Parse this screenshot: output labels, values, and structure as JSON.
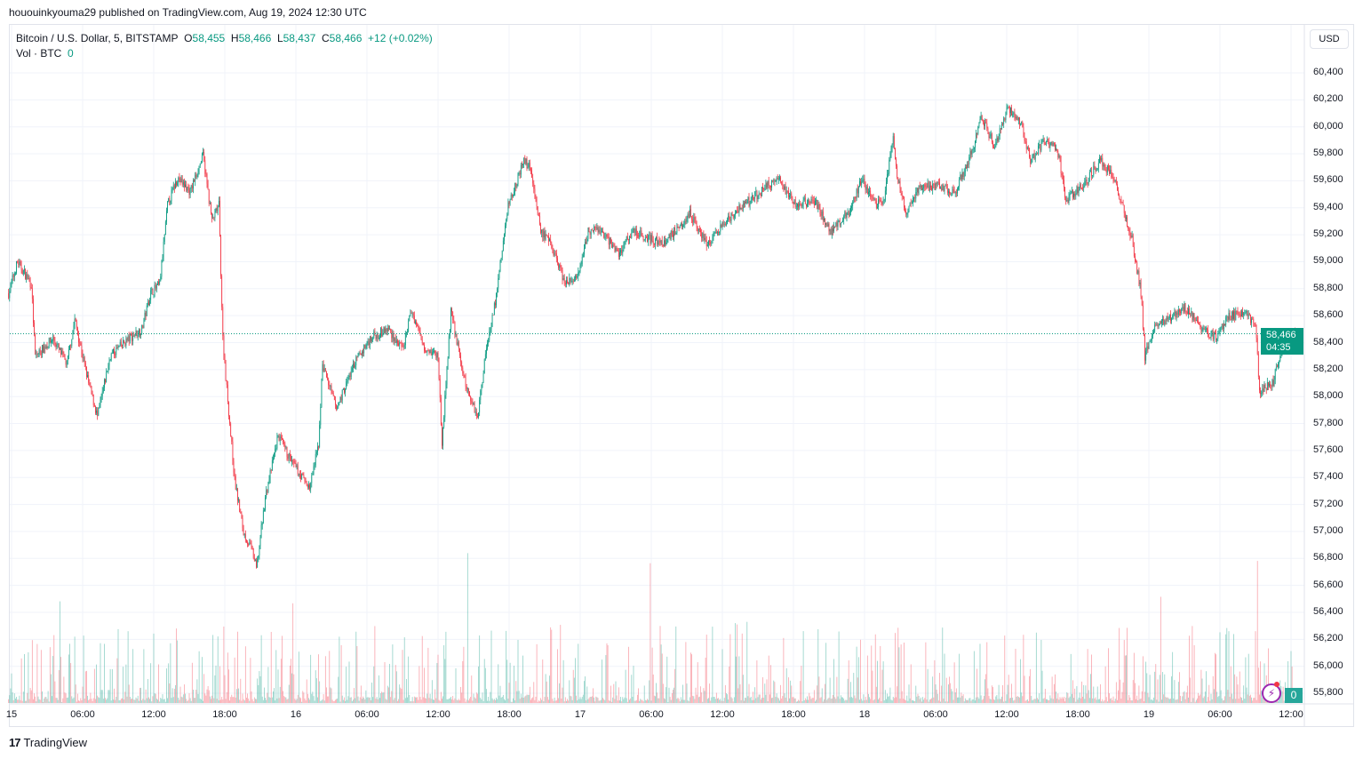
{
  "header": {
    "published": "hououinkyouma29 published on TradingView.com, Aug 19, 2024 12:30 UTC"
  },
  "legend": {
    "symbol": "Bitcoin / U.S. Dollar, 5, BITSTAMP",
    "o_label": "O",
    "o": "58,455",
    "h_label": "H",
    "h": "58,466",
    "l_label": "L",
    "l": "58,437",
    "c_label": "C",
    "c": "58,466",
    "change": "+12 (+0.02%)",
    "vol_label": "Vol · BTC",
    "vol": "0"
  },
  "currency_button": "USD",
  "last_price": {
    "price": "58,466",
    "countdown": "04:35"
  },
  "volume_label": "0",
  "footer": {
    "logo_text": "TradingView"
  },
  "colors": {
    "up": "#089981",
    "down": "#f23645",
    "grid": "#f0f3fa",
    "accent": "#9c27b0"
  },
  "icons": [
    "lightning-icon",
    "tradingview-logo-icon"
  ],
  "chart_data": {
    "type": "candlestick",
    "interval": "5m",
    "ylim": [
      55800,
      60400
    ],
    "price_ticks": [
      "60,400",
      "60,200",
      "60,000",
      "59,800",
      "59,600",
      "59,400",
      "59,200",
      "59,000",
      "58,800",
      "58,600",
      "58,400",
      "58,200",
      "58,000",
      "57,800",
      "57,600",
      "57,400",
      "57,200",
      "57,000",
      "56,800",
      "56,600",
      "56,400",
      "56,200",
      "56,000",
      "55,800"
    ],
    "time_ticks": [
      "15",
      "06:00",
      "12:00",
      "18:00",
      "16",
      "06:00",
      "12:00",
      "18:00",
      "17",
      "06:00",
      "12:00",
      "18:00",
      "18",
      "06:00",
      "12:00",
      "18:00",
      "19",
      "06:00",
      "12:00"
    ],
    "approx_close_path": [
      [
        "2024-08-14 23:45",
        58766
      ],
      [
        "2024-08-15 00:30",
        59000
      ],
      [
        "2024-08-15 01:40",
        58830
      ],
      [
        "2024-08-15 02:00",
        58300
      ],
      [
        "2024-08-15 03:30",
        58430
      ],
      [
        "2024-08-15 04:40",
        58240
      ],
      [
        "2024-08-15 05:20",
        58570
      ],
      [
        "2024-08-15 06:30",
        58100
      ],
      [
        "2024-08-15 07:15",
        57850
      ],
      [
        "2024-08-15 08:20",
        58300
      ],
      [
        "2024-08-15 09:30",
        58400
      ],
      [
        "2024-08-15 11:00",
        58500
      ],
      [
        "2024-08-15 11:45",
        58770
      ],
      [
        "2024-08-15 12:30",
        58830
      ],
      [
        "2024-08-15 13:10",
        59420
      ],
      [
        "2024-08-15 14:00",
        59620
      ],
      [
        "2024-08-15 15:05",
        59520
      ],
      [
        "2024-08-15 16:10",
        59790
      ],
      [
        "2024-08-15 16:55",
        59300
      ],
      [
        "2024-08-15 17:30",
        59420
      ],
      [
        "2024-08-15 17:50",
        58430
      ],
      [
        "2024-08-15 18:15",
        57970
      ],
      [
        "2024-08-15 18:50",
        57380
      ],
      [
        "2024-08-15 19:35",
        56990
      ],
      [
        "2024-08-15 20:20",
        56850
      ],
      [
        "2024-08-15 20:40",
        56720
      ],
      [
        "2024-08-15 21:25",
        57250
      ],
      [
        "2024-08-15 22:30",
        57710
      ],
      [
        "2024-08-15 23:40",
        57510
      ],
      [
        "2024-08-16 01:10",
        57320
      ],
      [
        "2024-08-16 01:55",
        57650
      ],
      [
        "2024-08-16 02:15",
        58240
      ],
      [
        "2024-08-16 03:25",
        57910
      ],
      [
        "2024-08-16 04:55",
        58240
      ],
      [
        "2024-08-16 06:20",
        58440
      ],
      [
        "2024-08-16 07:50",
        58500
      ],
      [
        "2024-08-16 09:00",
        58340
      ],
      [
        "2024-08-16 09:45",
        58640
      ],
      [
        "2024-08-16 10:50",
        58370
      ],
      [
        "2024-08-16 12:00",
        58300
      ],
      [
        "2024-08-16 12:20",
        57650
      ],
      [
        "2024-08-16 13:05",
        58640
      ],
      [
        "2024-08-16 14:15",
        58110
      ],
      [
        "2024-08-16 15:20",
        57850
      ],
      [
        "2024-08-16 16:05",
        58370
      ],
      [
        "2024-08-16 16:50",
        58700
      ],
      [
        "2024-08-16 17:55",
        59420
      ],
      [
        "2024-08-16 19:15",
        59750
      ],
      [
        "2024-08-16 19:50",
        59690
      ],
      [
        "2024-08-16 20:40",
        59230
      ],
      [
        "2024-08-16 21:40",
        59100
      ],
      [
        "2024-08-16 22:45",
        58830
      ],
      [
        "2024-08-16 23:55",
        58900
      ],
      [
        "2024-08-17 00:40",
        59230
      ],
      [
        "2024-08-17 01:45",
        59230
      ],
      [
        "2024-08-17 03:15",
        59060
      ],
      [
        "2024-08-17 04:25",
        59230
      ],
      [
        "2024-08-17 07:00",
        59130
      ],
      [
        "2024-08-17 09:15",
        59360
      ],
      [
        "2024-08-17 10:45",
        59130
      ],
      [
        "2024-08-17 13:00",
        59360
      ],
      [
        "2024-08-17 14:50",
        59490
      ],
      [
        "2024-08-17 16:40",
        59620
      ],
      [
        "2024-08-17 18:10",
        59420
      ],
      [
        "2024-08-17 19:40",
        59460
      ],
      [
        "2024-08-17 21:10",
        59230
      ],
      [
        "2024-08-17 22:40",
        59360
      ],
      [
        "2024-08-17 23:45",
        59620
      ],
      [
        "2024-08-18 00:55",
        59420
      ],
      [
        "2024-08-18 01:40",
        59460
      ],
      [
        "2024-08-18 02:25",
        59950
      ],
      [
        "2024-08-18 02:45",
        59620
      ],
      [
        "2024-08-18 03:30",
        59360
      ],
      [
        "2024-08-18 04:40",
        59560
      ],
      [
        "2024-08-18 06:10",
        59560
      ],
      [
        "2024-08-18 07:40",
        59520
      ],
      [
        "2024-08-18 09:05",
        59820
      ],
      [
        "2024-08-18 09:50",
        60080
      ],
      [
        "2024-08-18 11:00",
        59850
      ],
      [
        "2024-08-18 12:05",
        60150
      ],
      [
        "2024-08-18 13:15",
        60020
      ],
      [
        "2024-08-18 14:00",
        59750
      ],
      [
        "2024-08-18 15:05",
        59890
      ],
      [
        "2024-08-18 16:15",
        59850
      ],
      [
        "2024-08-18 17:00",
        59460
      ],
      [
        "2024-08-18 18:25",
        59560
      ],
      [
        "2024-08-18 19:55",
        59750
      ],
      [
        "2024-08-18 21:05",
        59620
      ],
      [
        "2024-08-18 21:50",
        59390
      ],
      [
        "2024-08-18 22:35",
        59160
      ],
      [
        "2024-08-18 23:20",
        58770
      ],
      [
        "2024-08-18 23:40",
        58300
      ],
      [
        "2024-08-19 00:25",
        58500
      ],
      [
        "2024-08-19 01:30",
        58570
      ],
      [
        "2024-08-19 03:00",
        58670
      ],
      [
        "2024-08-19 04:30",
        58500
      ],
      [
        "2024-08-19 05:40",
        58440
      ],
      [
        "2024-08-19 06:45",
        58600
      ],
      [
        "2024-08-19 08:15",
        58600
      ],
      [
        "2024-08-19 09:00",
        58540
      ],
      [
        "2024-08-19 09:20",
        58040
      ],
      [
        "2024-08-19 10:30",
        58110
      ],
      [
        "2024-08-19 11:15",
        58370
      ],
      [
        "2024-08-19 12:25",
        58466
      ]
    ],
    "last_price": 58466
  }
}
